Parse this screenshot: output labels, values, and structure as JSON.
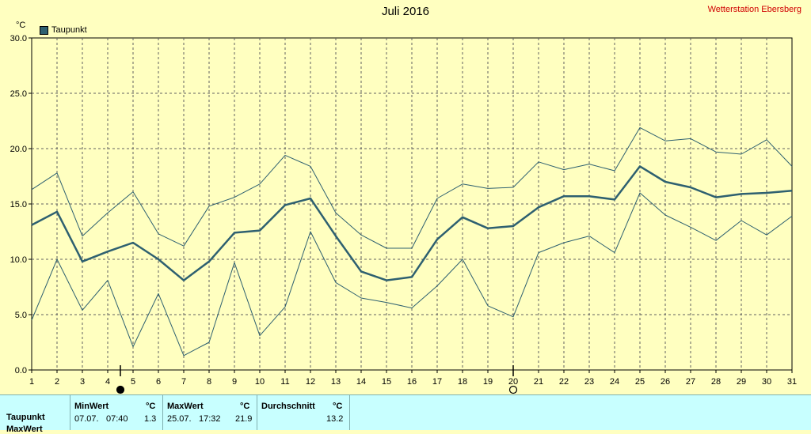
{
  "header": {
    "title": "Juli 2016",
    "station": "Wetterstation Ebersberg",
    "unit": "°C"
  },
  "colors": {
    "background": "#ffffc0",
    "series": "#2e6070",
    "grid": "#606060",
    "station_text": "#d00000",
    "footer_bg": "#c8ffff"
  },
  "chart_data": {
    "type": "line",
    "title": "Juli 2016",
    "ylabel": "°C",
    "ylim": [
      0,
      30
    ],
    "yticks": [
      "0.0",
      "5.0",
      "10.0",
      "15.0",
      "20.0",
      "25.0",
      "30.0"
    ],
    "x": [
      1,
      2,
      3,
      4,
      5,
      6,
      7,
      8,
      9,
      10,
      11,
      12,
      13,
      14,
      15,
      16,
      17,
      18,
      19,
      20,
      21,
      22,
      23,
      24,
      25,
      26,
      27,
      28,
      29,
      30,
      31
    ],
    "legend": [
      "Taupunkt"
    ],
    "grid": true,
    "moon_markers": [
      {
        "day": 4.5,
        "symbol": "full"
      },
      {
        "day": 20,
        "symbol": "empty"
      }
    ],
    "series": [
      {
        "name": "Taupunkt",
        "role": "mean",
        "values": [
          13.1,
          14.3,
          9.8,
          10.7,
          11.5,
          10.0,
          8.1,
          9.8,
          12.4,
          12.6,
          14.9,
          15.5,
          12.1,
          8.9,
          8.1,
          8.4,
          11.8,
          13.8,
          12.8,
          13.0,
          14.7,
          15.7,
          15.7,
          15.4,
          18.4,
          17.0,
          16.5,
          15.6,
          15.9,
          16.0,
          16.2
        ]
      },
      {
        "role": "max",
        "values": [
          16.3,
          17.8,
          12.1,
          14.2,
          16.1,
          12.3,
          11.2,
          14.8,
          15.6,
          16.8,
          19.4,
          18.4,
          14.2,
          12.2,
          11.0,
          11.0,
          15.5,
          16.8,
          16.4,
          16.5,
          18.8,
          18.1,
          18.6,
          18.0,
          21.9,
          20.7,
          20.9,
          19.7,
          19.5,
          20.8,
          18.4
        ]
      },
      {
        "role": "min",
        "values": [
          4.5,
          10.0,
          5.4,
          8.1,
          2.1,
          6.9,
          1.3,
          2.5,
          9.7,
          3.1,
          5.7,
          12.5,
          7.9,
          6.5,
          6.1,
          5.6,
          7.6,
          10.0,
          5.8,
          4.8,
          10.6,
          11.5,
          12.1,
          10.6,
          16.0,
          14.0,
          12.9,
          11.7,
          13.5,
          12.2,
          13.9
        ]
      }
    ]
  },
  "stats": {
    "minwert_label": "MinWert",
    "maxwert_label": "MaxWert",
    "durchschnitt_label": "Durchschnitt",
    "unit": "°C",
    "row_label": "Taupunkt",
    "row2_label": "MaxWert",
    "min_date": "07.07.",
    "min_time": "07:40",
    "min_value": "1.3",
    "max_date": "25.07.",
    "max_time": "17:32",
    "max_value": "21.9",
    "avg_value": "13.2"
  }
}
